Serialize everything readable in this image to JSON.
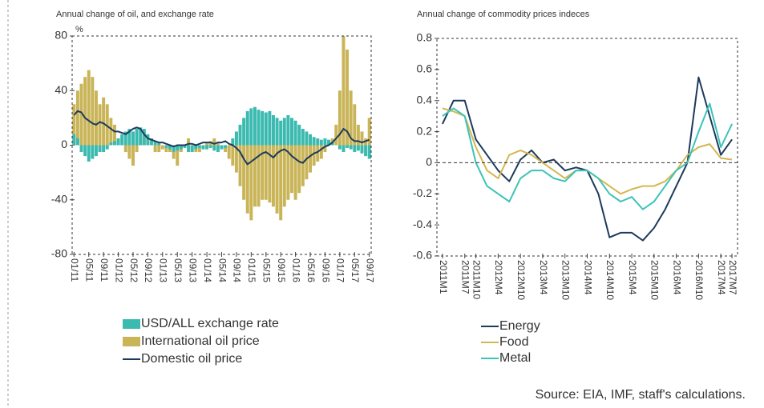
{
  "chart_data": [
    {
      "type": "bar",
      "title": "Annual change of oil, and exchange rate",
      "y_label": "%",
      "categories": [
        "01/11",
        null,
        null,
        null,
        "05/11",
        null,
        null,
        null,
        "09/11",
        null,
        null,
        null,
        "01/12",
        null,
        null,
        null,
        "05/12",
        null,
        null,
        null,
        "09/12",
        null,
        null,
        null,
        "01/13",
        null,
        null,
        null,
        "05/13",
        null,
        null,
        null,
        "09/13",
        null,
        null,
        null,
        "01/14",
        null,
        null,
        null,
        "05/14",
        null,
        null,
        null,
        "09/14",
        null,
        null,
        null,
        "01/15",
        null,
        null,
        null,
        "05/15",
        null,
        null,
        null,
        "09/15",
        null,
        null,
        null,
        "01/16",
        null,
        null,
        null,
        "05/16",
        null,
        null,
        null,
        "09/16",
        null,
        null,
        null,
        "01/17",
        null,
        null,
        null,
        "05/17",
        null,
        null,
        null,
        "09/17"
      ],
      "series": [
        {
          "name": "International oil price",
          "type": "bar",
          "color": "#c9b458",
          "values": [
            30,
            40,
            45,
            50,
            55,
            50,
            40,
            30,
            35,
            30,
            20,
            15,
            5,
            0,
            -5,
            -10,
            -15,
            -5,
            5,
            10,
            5,
            0,
            -5,
            -5,
            -3,
            -5,
            -5,
            -10,
            -15,
            -5,
            0,
            5,
            -3,
            -5,
            -5,
            -2,
            2,
            3,
            5,
            2,
            0,
            -5,
            -10,
            -15,
            -20,
            -30,
            -40,
            -50,
            -55,
            -45,
            -45,
            -40,
            -40,
            -42,
            -45,
            -50,
            -55,
            -45,
            -40,
            -35,
            -40,
            -35,
            -30,
            -25,
            -20,
            -15,
            -12,
            -10,
            -5,
            0,
            5,
            15,
            40,
            80,
            70,
            40,
            30,
            15,
            10,
            5,
            20
          ]
        },
        {
          "name": "USD/ALL exchange rate",
          "type": "bar",
          "color": "#3bbab0",
          "values": [
            8,
            5,
            -5,
            -8,
            -12,
            -10,
            -8,
            -5,
            -5,
            -3,
            2,
            3,
            5,
            8,
            10,
            12,
            10,
            12,
            13,
            12,
            8,
            5,
            3,
            2,
            0,
            -2,
            -3,
            -5,
            -4,
            -3,
            -2,
            -5,
            -5,
            -3,
            -2,
            -3,
            -3,
            -2,
            -4,
            -5,
            -3,
            -2,
            0,
            5,
            10,
            15,
            20,
            25,
            27,
            28,
            26,
            25,
            24,
            25,
            22,
            20,
            18,
            20,
            22,
            20,
            18,
            15,
            12,
            10,
            8,
            6,
            5,
            4,
            5,
            4,
            2,
            0,
            -3,
            -5,
            -2,
            -3,
            -5,
            -4,
            -6,
            -8,
            -10
          ]
        },
        {
          "name": "Domestic oil price",
          "type": "line",
          "color": "#1d3a5c",
          "values": [
            22,
            25,
            24,
            20,
            18,
            16,
            15,
            17,
            16,
            14,
            12,
            10,
            10,
            9,
            8,
            10,
            12,
            13,
            12,
            8,
            5,
            4,
            3,
            2,
            2,
            1,
            0,
            -1,
            0,
            0,
            0,
            1,
            1,
            0,
            1,
            2,
            2,
            2,
            1,
            2,
            2,
            3,
            1,
            0,
            -2,
            -5,
            -10,
            -14,
            -12,
            -10,
            -8,
            -6,
            -5,
            -7,
            -9,
            -6,
            -4,
            -3,
            -5,
            -8,
            -10,
            -12,
            -13,
            -10,
            -8,
            -6,
            -5,
            -3,
            -1,
            0,
            2,
            5,
            8,
            12,
            10,
            5,
            3,
            3,
            2,
            3,
            4
          ]
        }
      ],
      "legend_order": [
        1,
        0,
        2
      ],
      "ylim": [
        -80,
        80
      ],
      "yticks": [
        -80,
        -40,
        0,
        40,
        80
      ],
      "zero_line": false
    },
    {
      "type": "line",
      "title": "Annual change of commodity prices indeces",
      "categories": [
        "2011M1",
        null,
        "2011M7",
        "2011M10",
        null,
        "2012M4",
        null,
        "2012M10",
        null,
        "2013M4",
        null,
        "2013M10",
        null,
        "2014M4",
        null,
        "2014M10",
        null,
        "2015M4",
        null,
        "2015M10",
        null,
        "2016M4",
        null,
        "2016M10",
        null,
        "2017M4",
        "2017M7"
      ],
      "series": [
        {
          "name": "Energy",
          "color": "#1d3a5c",
          "values": [
            0.25,
            0.4,
            0.4,
            0.15,
            0.05,
            -0.05,
            -0.12,
            0.02,
            0.08,
            0.0,
            0.02,
            -0.05,
            -0.03,
            -0.05,
            -0.2,
            -0.48,
            -0.45,
            -0.45,
            -0.5,
            -0.42,
            -0.3,
            -0.15,
            0.0,
            0.55,
            0.3,
            0.05,
            0.15
          ]
        },
        {
          "name": "Food",
          "color": "#d4b650",
          "values": [
            0.35,
            0.33,
            0.3,
            0.1,
            -0.05,
            -0.1,
            0.05,
            0.08,
            0.05,
            0.0,
            -0.05,
            -0.1,
            -0.05,
            -0.05,
            -0.1,
            -0.15,
            -0.2,
            -0.17,
            -0.15,
            -0.15,
            -0.12,
            -0.05,
            0.05,
            0.1,
            0.12,
            0.03,
            0.02
          ]
        },
        {
          "name": "Metal",
          "color": "#3cc3b8",
          "values": [
            0.3,
            0.35,
            0.3,
            0.0,
            -0.15,
            -0.2,
            -0.25,
            -0.1,
            -0.05,
            -0.05,
            -0.1,
            -0.12,
            -0.05,
            -0.05,
            -0.1,
            -0.2,
            -0.25,
            -0.22,
            -0.3,
            -0.25,
            -0.15,
            -0.05,
            0.0,
            0.2,
            0.38,
            0.1,
            0.25
          ]
        }
      ],
      "ylim": [
        -0.6,
        0.8
      ],
      "yticks": [
        -0.6,
        -0.4,
        -0.2,
        0,
        0.2,
        0.4,
        0.6,
        0.8
      ],
      "zero_line": true
    }
  ],
  "source": "Source: EIA, IMF, staff's calculations."
}
